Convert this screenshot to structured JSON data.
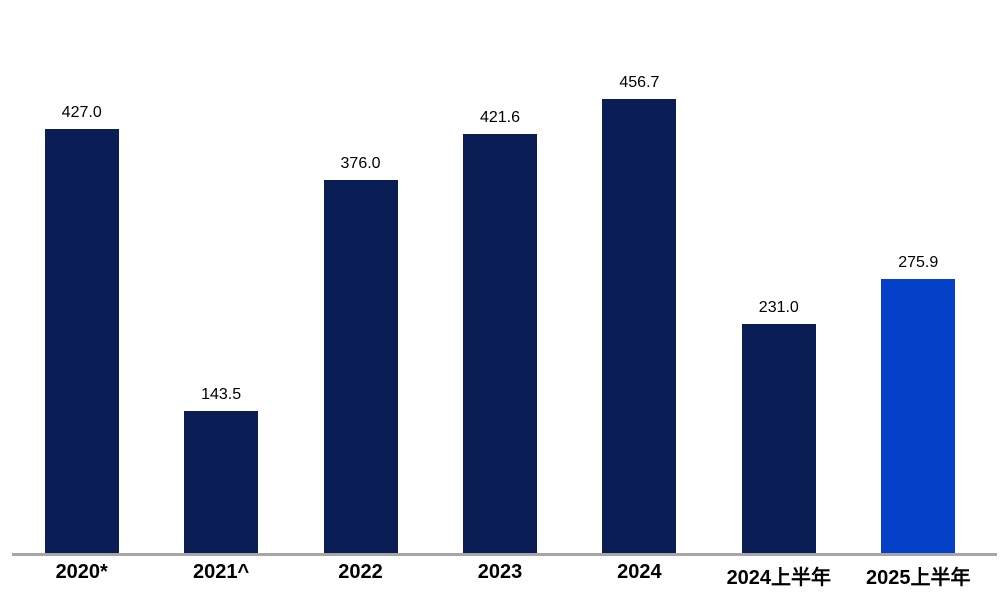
{
  "chart_data": {
    "type": "bar",
    "categories": [
      "2020*",
      "2021^",
      "2022",
      "2023",
      "2024",
      "2024上半年",
      "2025上半年"
    ],
    "values": [
      427.0,
      143.5,
      376.0,
      421.6,
      456.7,
      231.0,
      275.9
    ],
    "value_labels": [
      "427.0",
      "143.5",
      "376.0",
      "421.6",
      "456.7",
      "231.0",
      "275.9"
    ],
    "title": "",
    "xlabel": "",
    "ylabel": "",
    "ylim": [
      0,
      500
    ],
    "grid": false,
    "legend": "none",
    "highlight_index": 6,
    "colors": {
      "bar_default": "#0A1E55",
      "bar_highlight": "#0540C8",
      "axis_line": "#A6A6A6",
      "label_text": "#000000",
      "background": "#FFFFFF"
    }
  }
}
